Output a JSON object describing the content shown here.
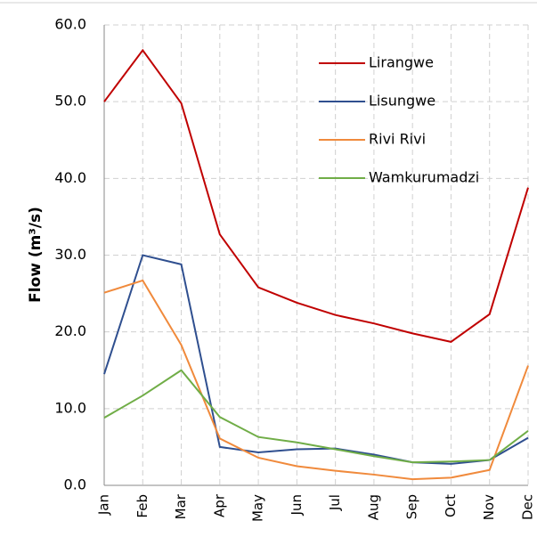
{
  "chart_data": {
    "type": "line",
    "y_label": "Flow (m³/s)",
    "categories": [
      "Jan",
      "Feb",
      "Mar",
      "Apr",
      "May",
      "Jun",
      "Jul",
      "Aug",
      "Sep",
      "Oct",
      "Nov",
      "Dec"
    ],
    "series": [
      {
        "name": "Lirangwe",
        "color": "#c00000",
        "values": [
          50.0,
          56.7,
          49.8,
          32.7,
          25.8,
          23.8,
          22.2,
          21.1,
          19.8,
          18.7,
          22.3,
          38.8
        ]
      },
      {
        "name": "Lisungwe",
        "color": "#2f4f8f",
        "values": [
          14.5,
          30.0,
          28.8,
          5.0,
          4.3,
          4.7,
          4.8,
          4.0,
          3.0,
          2.8,
          3.3,
          6.2
        ]
      },
      {
        "name": "Rivi Rivi",
        "color": "#f08a3c",
        "values": [
          25.1,
          26.7,
          18.3,
          6.1,
          3.6,
          2.5,
          1.9,
          1.4,
          0.8,
          1.0,
          2.0,
          15.6
        ]
      },
      {
        "name": "Wamkurumadzi",
        "color": "#70ad47",
        "values": [
          8.8,
          11.7,
          15.0,
          8.9,
          6.3,
          5.6,
          4.7,
          3.8,
          3.0,
          3.1,
          3.3,
          7.1
        ]
      }
    ],
    "ylim": [
      0,
      60
    ],
    "yticks": [
      {
        "value": 0,
        "label": "0.0"
      },
      {
        "value": 10,
        "label": "10.0"
      },
      {
        "value": 20,
        "label": "20.0"
      },
      {
        "value": 30,
        "label": "30.0"
      },
      {
        "value": 40,
        "label": "40.0"
      },
      {
        "value": 50,
        "label": "50.0"
      },
      {
        "value": 60,
        "label": "60.0"
      }
    ],
    "grid": true,
    "legend": "upper right"
  }
}
